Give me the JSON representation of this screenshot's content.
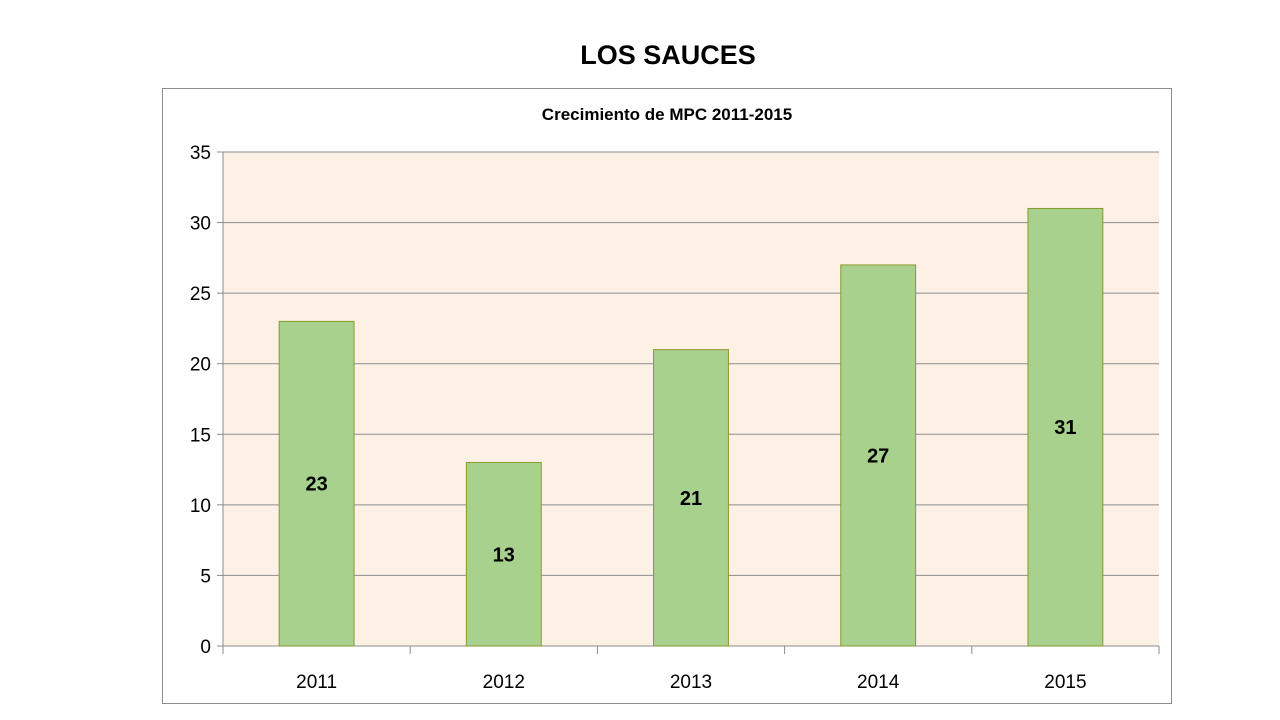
{
  "page": {
    "title": "LOS SAUCES"
  },
  "chart_data": {
    "type": "bar",
    "title": "Crecimiento de MPC 2011-2015",
    "xlabel": "",
    "ylabel": "",
    "categories": [
      "2011",
      "2012",
      "2013",
      "2014",
      "2015"
    ],
    "values": [
      23,
      13,
      21,
      27,
      31
    ],
    "data_labels": [
      "23",
      "13",
      "21",
      "27",
      "31"
    ],
    "ylim": [
      0,
      35
    ],
    "yticks": [
      0,
      5,
      10,
      15,
      20,
      25,
      30,
      35
    ],
    "ytick_labels": [
      "0",
      "5",
      "10",
      "15",
      "20",
      "25",
      "30",
      "35"
    ],
    "grid": true,
    "legend": "none",
    "colors": {
      "bar_fill": "#a9d18e",
      "bar_stroke": "#8a9a2a",
      "plot_background": "#fdf1e6",
      "grid": "#8c8c8c"
    }
  }
}
